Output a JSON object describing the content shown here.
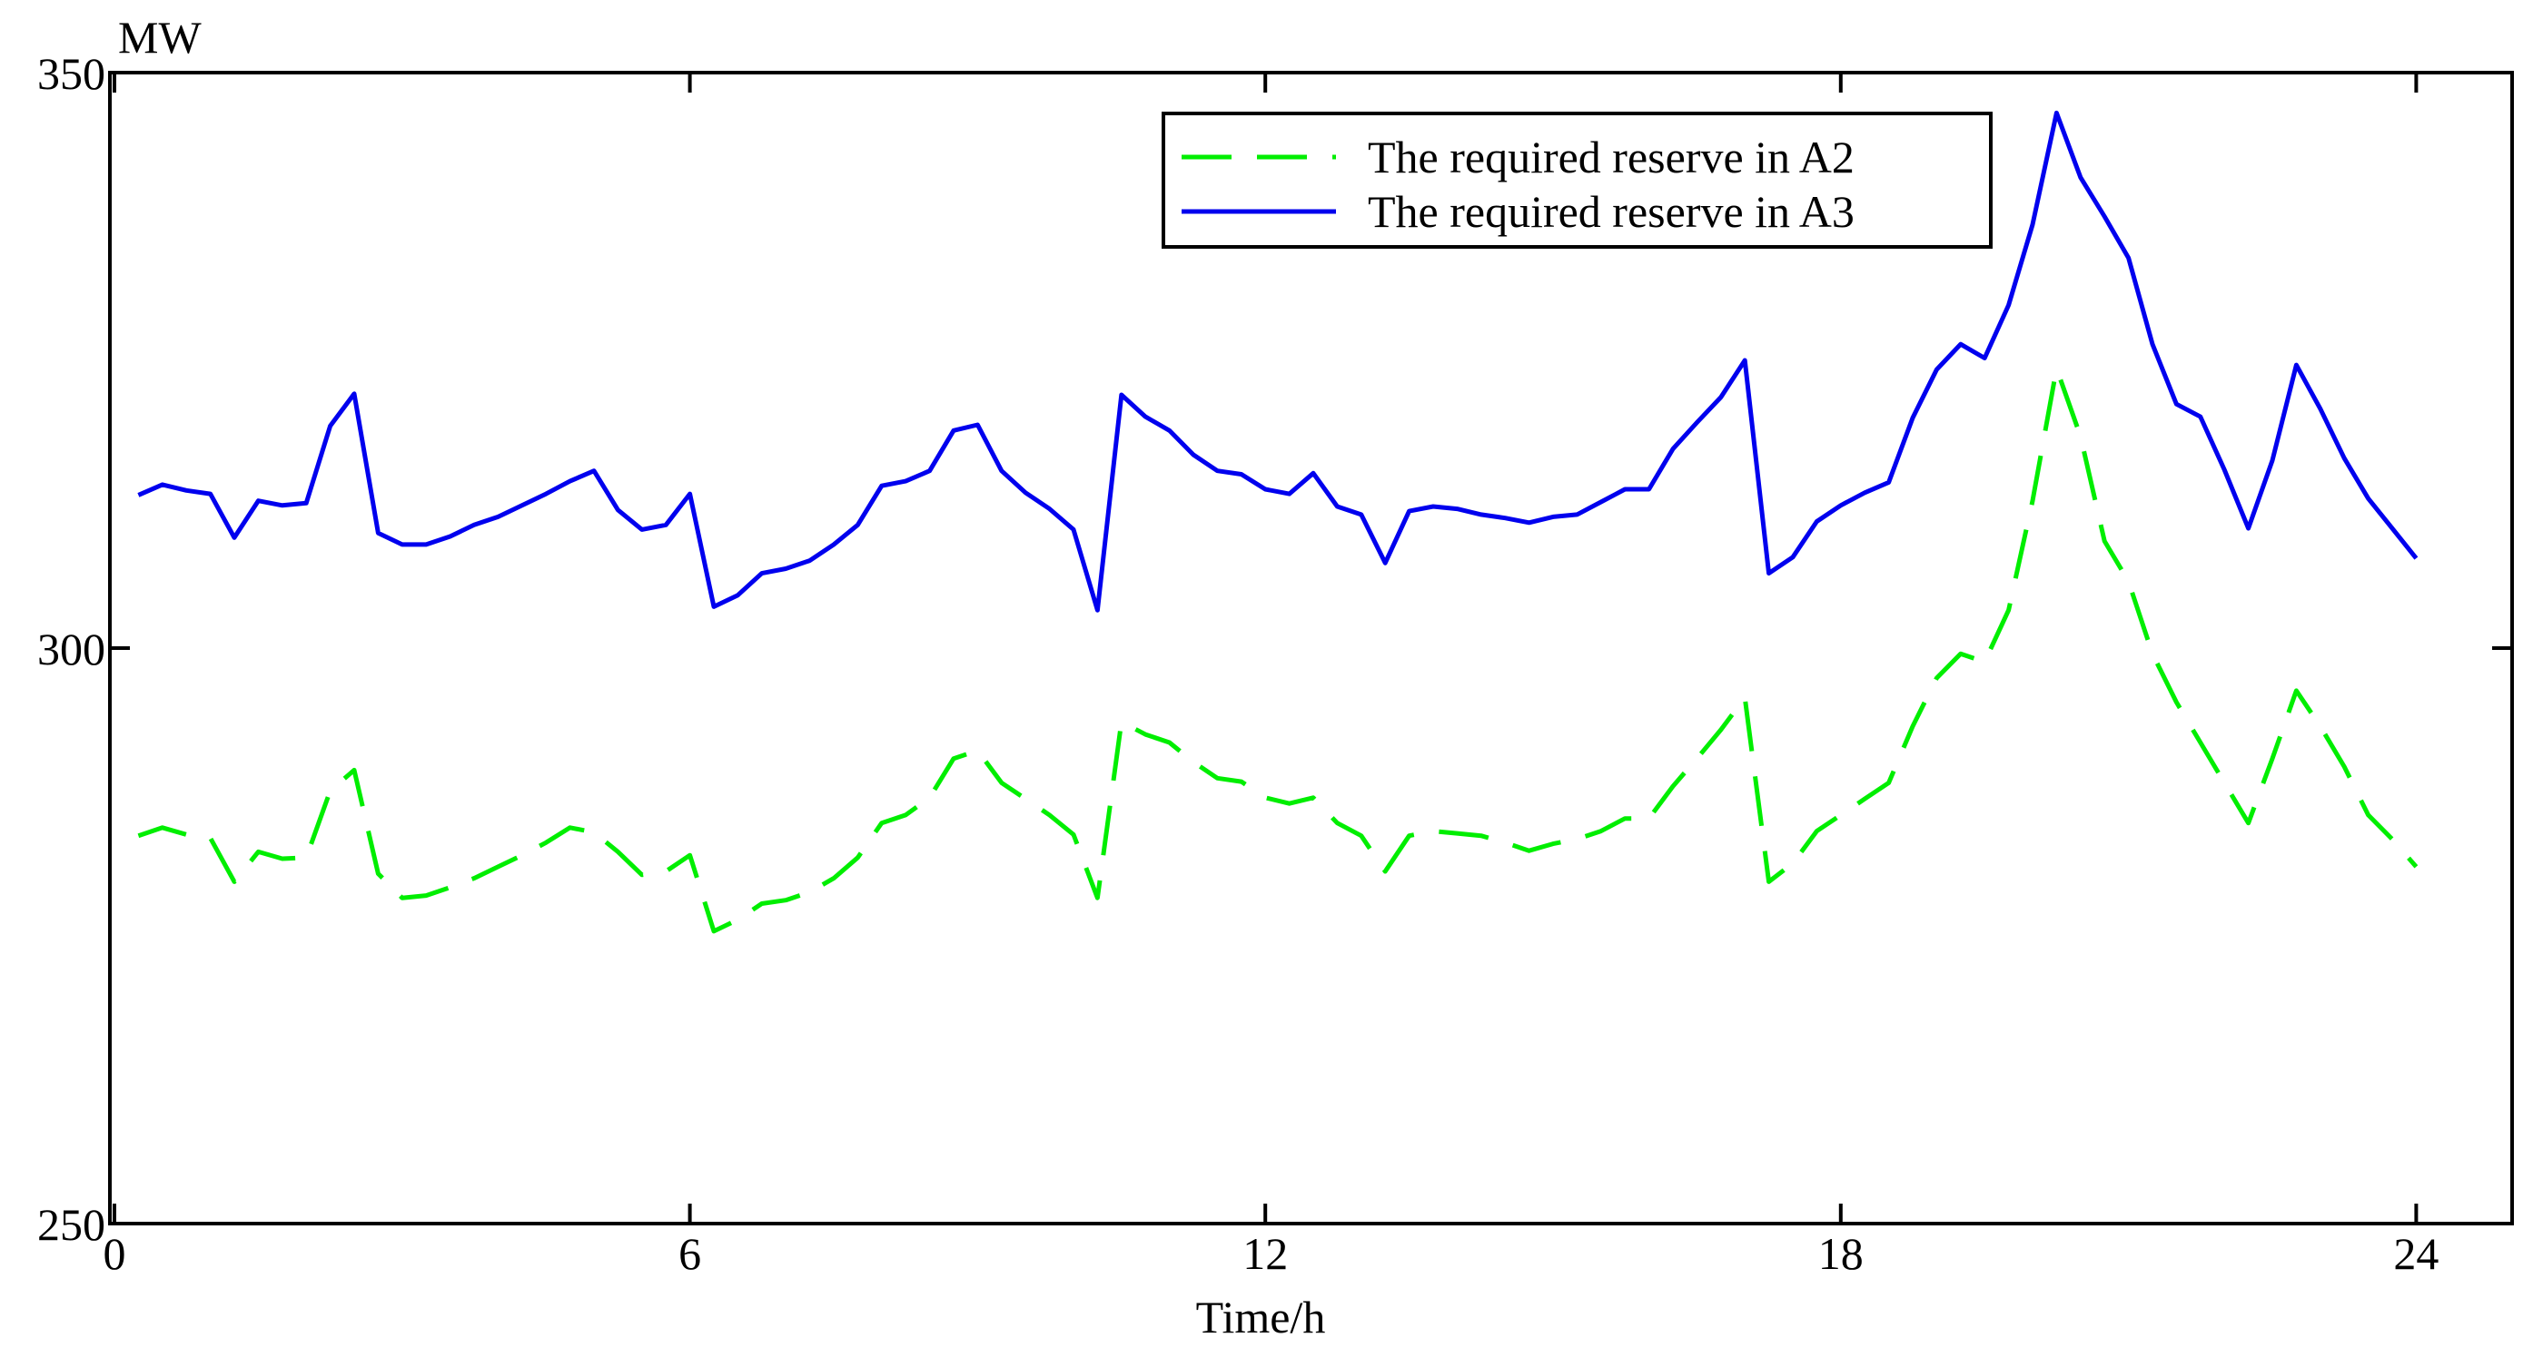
{
  "chart_data": {
    "type": "line",
    "xlabel": "Time/h",
    "ylabel": "MW",
    "x": [
      0.25,
      0.5,
      0.75,
      1,
      1.25,
      1.5,
      1.75,
      2,
      2.25,
      2.5,
      2.75,
      3,
      3.25,
      3.5,
      3.75,
      4,
      4.25,
      4.5,
      4.75,
      5,
      5.25,
      5.5,
      5.75,
      6,
      6.25,
      6.5,
      6.75,
      7,
      7.25,
      7.5,
      7.75,
      8,
      8.25,
      8.5,
      8.75,
      9,
      9.25,
      9.5,
      9.75,
      10,
      10.25,
      10.5,
      10.75,
      11,
      11.25,
      11.5,
      11.75,
      12,
      12.25,
      12.5,
      12.75,
      13,
      13.25,
      13.5,
      13.75,
      14,
      14.25,
      14.5,
      14.75,
      15,
      15.25,
      15.5,
      15.75,
      16,
      16.25,
      16.5,
      16.75,
      17,
      17.25,
      17.5,
      17.75,
      18,
      18.25,
      18.5,
      18.75,
      19,
      19.25,
      19.5,
      19.75,
      20,
      20.25,
      20.5,
      20.75,
      21,
      21.25,
      21.5,
      21.75,
      22,
      22.25,
      22.5,
      22.75,
      23,
      23.25,
      23.5,
      23.75,
      24
    ],
    "series": [
      {
        "name": "The required reserve in A2",
        "color": "#00ee00",
        "dashed": true,
        "values": [
          283.7,
          284.4,
          283.8,
          283.5,
          279.7,
          282.3,
          281.7,
          281.8,
          287.6,
          289.4,
          280.4,
          278.3,
          278.5,
          279.2,
          280.0,
          281.0,
          282.0,
          283.1,
          284.4,
          284.0,
          282.3,
          280.3,
          280.6,
          282.0,
          275.4,
          276.4,
          277.8,
          278.1,
          278.8,
          280.0,
          281.8,
          284.8,
          285.5,
          287.0,
          290.4,
          291.1,
          288.3,
          286.9,
          285.5,
          283.8,
          278.3,
          293.6,
          292.5,
          291.8,
          290.1,
          288.7,
          288.4,
          287.0,
          286.5,
          287.0,
          284.8,
          283.7,
          280.6,
          283.7,
          284.1,
          283.9,
          283.7,
          283.1,
          282.4,
          283.0,
          283.4,
          284.1,
          285.2,
          285.2,
          288.0,
          290.4,
          292.9,
          295.7,
          279.7,
          281.3,
          284.1,
          285.5,
          286.9,
          288.3,
          293.2,
          297.4,
          299.5,
          298.8,
          303.3,
          312.8,
          324.3,
          318.4,
          309.3,
          305.8,
          299.5,
          295.3,
          291.8,
          288.3,
          284.8,
          290.4,
          296.3,
          293.2,
          289.7,
          285.5,
          283.4,
          281.0
        ]
      },
      {
        "name": "The required reserve in A3",
        "color": "#0000ee",
        "dashed": false,
        "values": [
          313.3,
          314.2,
          313.7,
          313.4,
          309.6,
          312.8,
          312.4,
          312.6,
          319.3,
          322.1,
          310.0,
          309.0,
          309.0,
          309.7,
          310.7,
          311.4,
          312.4,
          313.4,
          314.5,
          315.4,
          312.0,
          310.3,
          310.7,
          313.4,
          303.6,
          304.6,
          306.5,
          306.9,
          307.6,
          309.0,
          310.7,
          314.1,
          314.5,
          315.4,
          318.9,
          319.4,
          315.4,
          313.5,
          312.1,
          310.3,
          303.3,
          322.0,
          320.1,
          318.9,
          316.8,
          315.4,
          315.1,
          313.8,
          313.4,
          315.2,
          312.3,
          311.6,
          307.4,
          311.9,
          312.3,
          312.1,
          311.6,
          311.3,
          310.9,
          311.4,
          311.6,
          312.7,
          313.8,
          313.8,
          317.3,
          319.6,
          321.8,
          325.0,
          306.5,
          307.9,
          311.0,
          312.4,
          313.5,
          314.4,
          320.0,
          324.2,
          326.4,
          325.2,
          329.8,
          336.8,
          346.5,
          340.9,
          337.5,
          333.9,
          326.4,
          321.2,
          320.1,
          315.5,
          310.4,
          316.3,
          324.6,
          320.8,
          316.5,
          313.0,
          310.4,
          307.8
        ]
      }
    ],
    "xlim": [
      0,
      25
    ],
    "ylim": [
      250,
      350
    ],
    "xticks": [
      0,
      6,
      12,
      18,
      24
    ],
    "yticks": [
      250,
      300,
      350
    ],
    "grid": false,
    "legend": "upper right"
  }
}
